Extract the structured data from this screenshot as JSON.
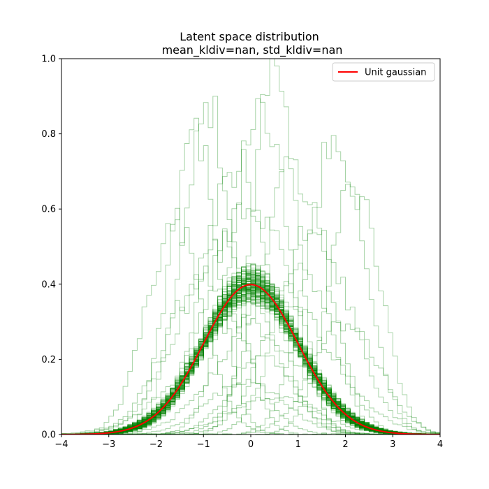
{
  "chart_data": {
    "type": "line",
    "title": "Latent space distribution",
    "subtitle": "mean_kldiv=nan, std_kldiv=nan",
    "xlim": [
      -4,
      4
    ],
    "ylim": [
      0,
      1.0
    ],
    "x_ticks": [
      -4,
      -3,
      -2,
      -1,
      0,
      1,
      2,
      3,
      4
    ],
    "y_ticks": [
      0.0,
      0.2,
      0.4,
      0.6,
      0.8,
      1.0
    ],
    "x_tick_labels": [
      "−4",
      "−3",
      "−2",
      "−1",
      "0",
      "1",
      "2",
      "3",
      "4"
    ],
    "y_tick_labels": [
      "0.0",
      "0.2",
      "0.4",
      "0.6",
      "0.8",
      "1.0"
    ],
    "legend": {
      "position": "top-right",
      "entries": [
        {
          "label": "Unit gaussian",
          "color": "#ff0000"
        }
      ]
    },
    "grid": false,
    "series": [
      {
        "name": "Unit gaussian",
        "kind": "pdf",
        "mean": 0,
        "std": 1,
        "color": "#ff0000"
      }
    ],
    "histogram_series": {
      "color": "#008000",
      "description_free": true,
      "bin_width": 0.1,
      "dense_band": {
        "count": 120,
        "mean_range": [
          -0.08,
          0.08
        ],
        "std_range": [
          0.92,
          1.08
        ]
      },
      "outliers": [
        {
          "mean": -0.9,
          "std": 0.55,
          "peak": 0.86
        },
        {
          "mean": -1.2,
          "std": 0.5,
          "peak": 0.8
        },
        {
          "mean": 0.5,
          "std": 0.45,
          "peak": 0.99
        },
        {
          "mean": 0.2,
          "std": 0.6,
          "peak": 0.86
        },
        {
          "mean": 1.8,
          "std": 0.6,
          "peak": 0.78
        },
        {
          "mean": 2.2,
          "std": 0.55,
          "peak": 0.66
        },
        {
          "mean": -0.3,
          "std": 0.7,
          "peak": 0.72
        },
        {
          "mean": 0.9,
          "std": 0.7,
          "peak": 0.7
        },
        {
          "mean": -1.6,
          "std": 0.6,
          "peak": 0.56
        },
        {
          "mean": 1.3,
          "std": 0.8,
          "peak": 0.55
        },
        {
          "mean": 0.0,
          "std": 0.9,
          "peak": 0.62
        },
        {
          "mean": -0.6,
          "std": 0.9,
          "peak": 0.5
        },
        {
          "mean": 0.6,
          "std": 1.1,
          "peak": 0.36
        },
        {
          "mean": -0.2,
          "std": 1.2,
          "peak": 0.3
        },
        {
          "mean": 0.3,
          "std": 0.7,
          "peak": 0.2
        },
        {
          "mean": -0.1,
          "std": 0.8,
          "peak": 0.14
        },
        {
          "mean": 0.5,
          "std": 0.9,
          "peak": 0.1
        },
        {
          "mean": 1.1,
          "std": 0.6,
          "peak": 0.45
        },
        {
          "mean": -1.0,
          "std": 0.8,
          "peak": 0.42
        },
        {
          "mean": 2.0,
          "std": 0.7,
          "peak": 0.3
        }
      ]
    }
  }
}
